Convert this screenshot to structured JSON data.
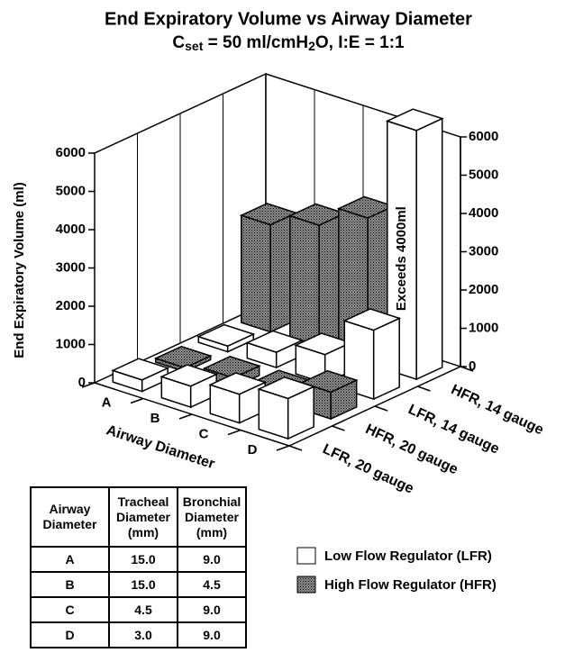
{
  "chart_data": {
    "type": "bar3d",
    "title": "End Expiratory Volume vs Airway Diameter",
    "subtitle": [
      {
        "text": "C"
      },
      {
        "text": "set",
        "sub": true
      },
      {
        "text": " = 50 ml/cmH"
      },
      {
        "text": "2",
        "sub": true
      },
      {
        "text": "O, I:E = 1:1"
      }
    ],
    "ylabel": "End Expiratory Volume (ml)",
    "xlabel": "Airway Diameter",
    "categories": [
      "A",
      "B",
      "C",
      "D"
    ],
    "series": [
      {
        "name": "LFR, 20 gauge",
        "color": "#ffffff",
        "values": [
          300,
          550,
          750,
          1050
        ]
      },
      {
        "name": "HFR, 20 gauge",
        "color": "#8c8c8c",
        "values": [
          100,
          250,
          300,
          700
        ]
      },
      {
        "name": "LFR, 14 gauge",
        "color": "#ffffff",
        "values": [
          150,
          400,
          750,
          1800
        ]
      },
      {
        "name": "HFR, 14 gauge",
        "color": "#8c8c8c",
        "values": [
          2800,
          3200,
          3800,
          6500
        ]
      }
    ],
    "annotation": "Exceeds 4000ml",
    "ylim": [
      0,
      6000
    ],
    "yticks": [
      0,
      1000,
      2000,
      3000,
      4000,
      5000,
      6000
    ],
    "legend": [
      {
        "label": "Low Flow Regulator (LFR)",
        "color": "#ffffff"
      },
      {
        "label": "High Flow Regulator (HFR)",
        "color": "#8c8c8c"
      }
    ]
  },
  "table": {
    "header": [
      [
        "Airway",
        "Diameter"
      ],
      [
        "Tracheal",
        "Diameter",
        "(mm)"
      ],
      [
        "Bronchial",
        "Diameter",
        "(mm)"
      ]
    ],
    "rows": [
      [
        "A",
        "15.0",
        "9.0"
      ],
      [
        "B",
        "15.0",
        "4.5"
      ],
      [
        "C",
        "4.5",
        "9.0"
      ],
      [
        "D",
        "3.0",
        "9.0"
      ]
    ]
  }
}
